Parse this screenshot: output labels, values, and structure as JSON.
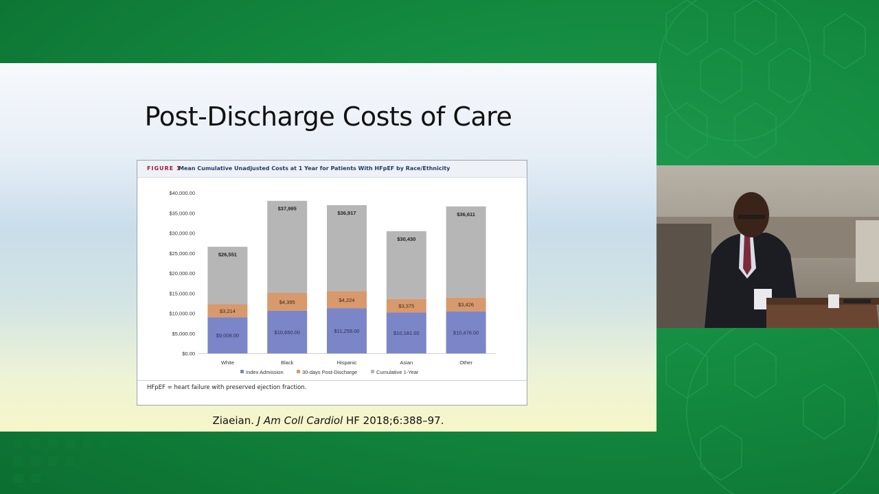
{
  "slide": {
    "title": "Post-Discharge Costs of Care",
    "citation_author": "Ziaeian.",
    "citation_journal": "J Am Coll Cardiol",
    "citation_rest": "HF 2018;6:388–97."
  },
  "figure": {
    "label": "FIGURE 1",
    "caption": "Mean Cumulative Unadjusted Costs at 1 Year for Patients With HFpEF by Race/Ethnicity",
    "footnote": "HFpEF = heart failure with preserved ejection fraction."
  },
  "chart_data": {
    "type": "bar",
    "stacked": true,
    "categories": [
      "White",
      "Black",
      "Hispanic",
      "Asian",
      "Other"
    ],
    "series": [
      {
        "name": "Index Admission",
        "color": "#7b86c8",
        "values": [
          9008,
          10650,
          11259,
          10181,
          10476
        ],
        "labels": [
          "$9,008.00",
          "$10,650.00",
          "$11,259.00",
          "$10,181.00",
          "$10,476.00"
        ]
      },
      {
        "name": "30-days Post-Discharge",
        "color": "#d8996c",
        "values": [
          3214,
          4395,
          4224,
          3375,
          3426
        ],
        "labels": [
          "$3,214",
          "$4,395",
          "$4,224",
          "$3,375",
          "$3,426"
        ]
      },
      {
        "name": "Cumulative 1-Year",
        "color": "#b6b6b6",
        "values": [
          14329,
          22950,
          21434,
          16874,
          22709
        ]
      }
    ],
    "totals": [
      26551,
      37995,
      36917,
      30430,
      36611
    ],
    "total_labels": [
      "$26,551",
      "$37,995",
      "$36,917",
      "$30,430",
      "$36,611"
    ],
    "yticks": [
      "$0.00",
      "$5,000.00",
      "$10,000.00",
      "$15,000.00",
      "$20,000.00",
      "$25,000.00",
      "$30,000.00",
      "$35,000.00",
      "$40,000.00"
    ],
    "ylim": [
      0,
      40000
    ],
    "legend_position": "bottom",
    "grid": false
  }
}
